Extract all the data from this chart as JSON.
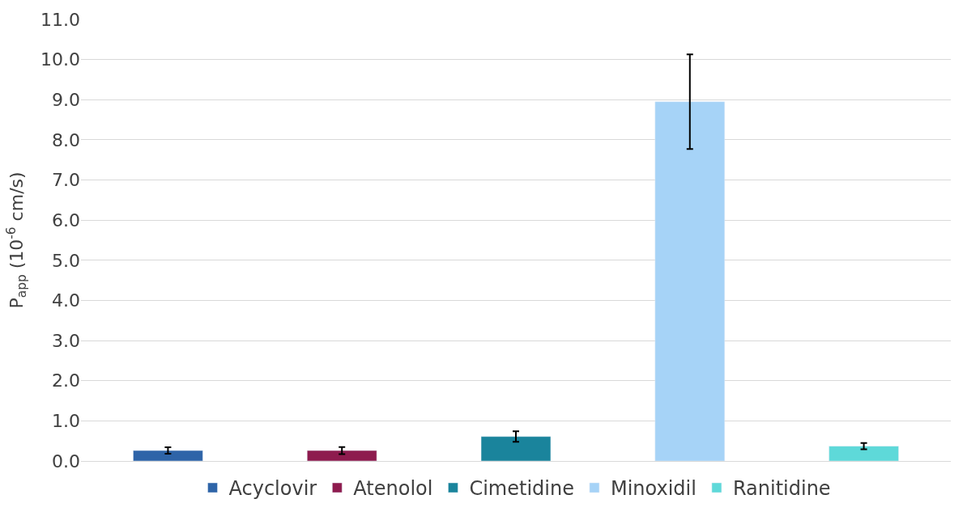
{
  "chart_data": {
    "type": "bar",
    "ylabel": "P$_{app}$ (10$^{-6}$ cm/s)",
    "categories": [
      null
    ],
    "series": [
      {
        "name": "Acyclovir",
        "color": "#2e64a8",
        "values": [
          0.26
        ],
        "errors": [
          0.08
        ]
      },
      {
        "name": "Atenolol",
        "color": "#8e1b4e",
        "values": [
          0.26
        ],
        "errors": [
          0.09
        ]
      },
      {
        "name": "Cimetidine",
        "color": "#1a849c",
        "values": [
          0.61
        ],
        "errors": [
          0.13
        ]
      },
      {
        "name": "Minoxidil",
        "color": "#a6d3f7",
        "values": [
          8.95
        ],
        "errors": [
          1.18
        ]
      },
      {
        "name": "Ranitidine",
        "color": "#5ed9d9",
        "values": [
          0.37
        ],
        "errors": [
          0.08
        ]
      }
    ],
    "ylim": [
      0,
      11
    ],
    "yticks": [
      {
        "value": 0,
        "label": "0.0"
      },
      {
        "value": 1,
        "label": "1.0"
      },
      {
        "value": 2,
        "label": "2.0"
      },
      {
        "value": 3,
        "label": "3.0"
      },
      {
        "value": 4,
        "label": "4.0"
      },
      {
        "value": 5,
        "label": "5.0"
      },
      {
        "value": 6,
        "label": "6.0"
      },
      {
        "value": 7,
        "label": "7.0"
      },
      {
        "value": 8,
        "label": "8.0"
      },
      {
        "value": 9,
        "label": "9.0"
      },
      {
        "value": 10,
        "label": "10.0"
      },
      {
        "value": 11,
        "label": "11.0"
      }
    ],
    "grid": "y",
    "legend": "bottom"
  }
}
